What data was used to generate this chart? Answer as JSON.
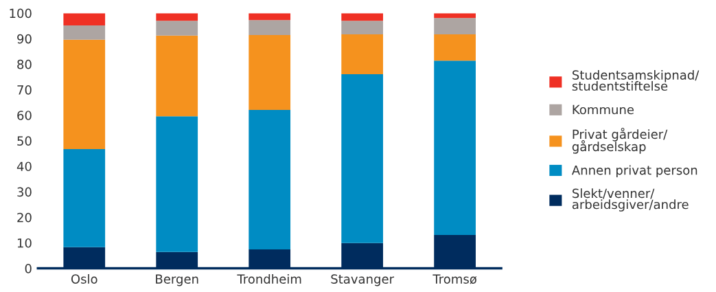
{
  "chart_data": {
    "type": "bar",
    "stacked": true,
    "categories": [
      "Oslo",
      "Bergen",
      "Trondheim",
      "Stavanger",
      "Tromsø"
    ],
    "series": [
      {
        "name": "Slekt/venner/\narbeidsgiver/andre",
        "color": "#002c5e",
        "values": [
          8.3,
          6.4,
          7.4,
          9.9,
          13.1
        ]
      },
      {
        "name": "Annen privat person",
        "color": "#008cc3",
        "values": [
          38.4,
          53.2,
          54.7,
          66.2,
          68.3
        ]
      },
      {
        "name": "Privat gårdeier/\ngårdselskap",
        "color": "#f5921e",
        "values": [
          42.9,
          31.6,
          29.3,
          15.6,
          10.3
        ]
      },
      {
        "name": "Kommune",
        "color": "#ada5a2",
        "values": [
          5.6,
          5.8,
          5.9,
          5.3,
          6.4
        ]
      },
      {
        "name": "Studentsamskipnad/\nstudentstiftelse",
        "color": "#ef3024",
        "values": [
          4.8,
          3.0,
          2.7,
          3.0,
          1.9
        ]
      }
    ],
    "ylim": [
      0,
      100
    ],
    "yticks": [
      0,
      10,
      20,
      30,
      40,
      50,
      60,
      70,
      80,
      90,
      100
    ],
    "grid": false,
    "legend": "right"
  }
}
